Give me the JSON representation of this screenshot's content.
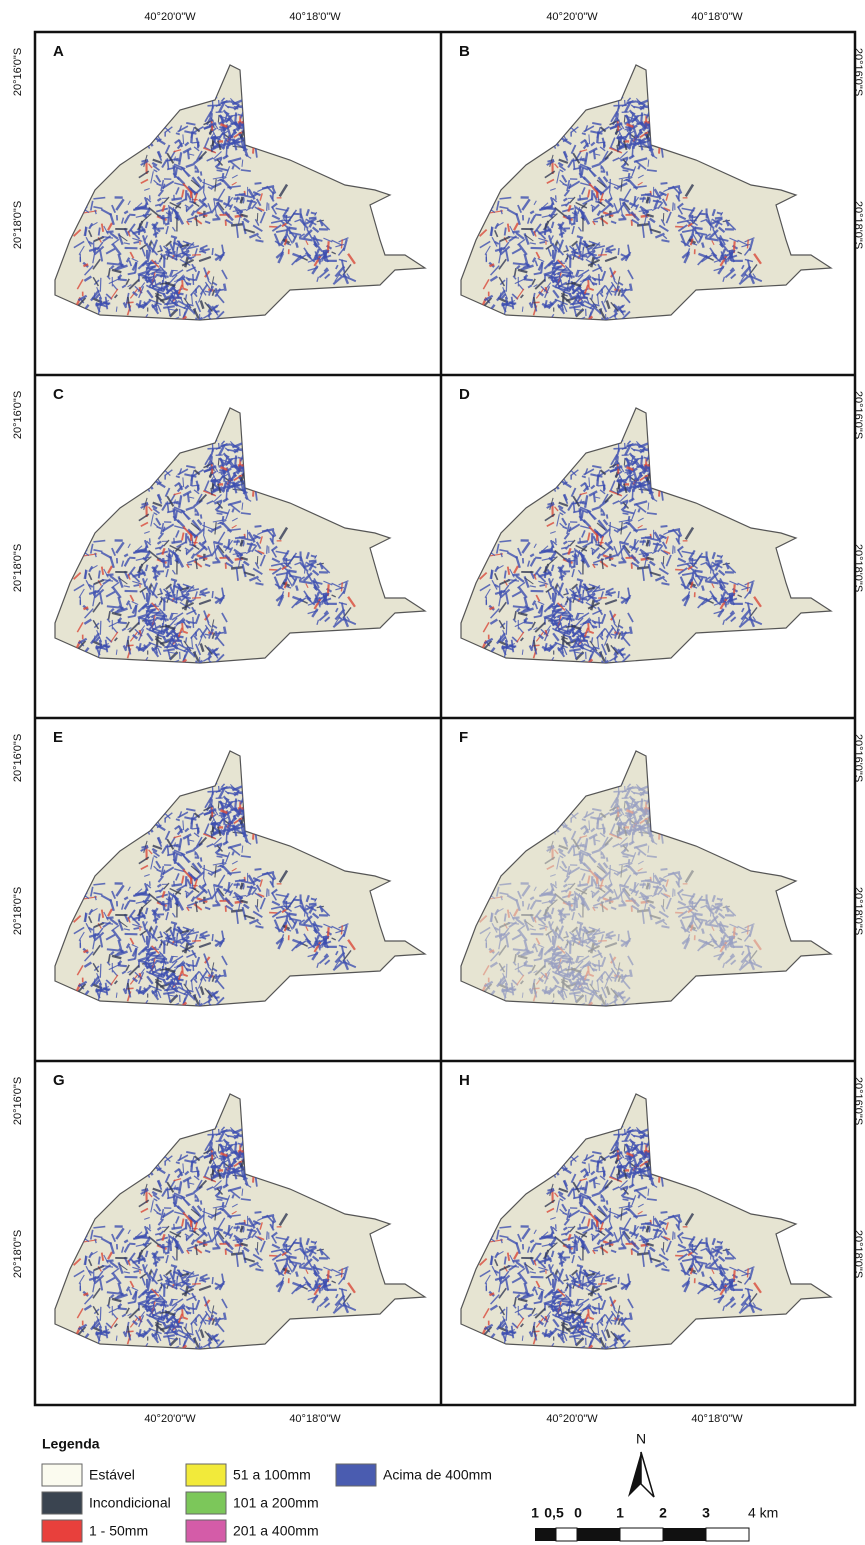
{
  "panels": [
    {
      "label": "A"
    },
    {
      "label": "B"
    },
    {
      "label": "C"
    },
    {
      "label": "D"
    },
    {
      "label": "E"
    },
    {
      "label": "F"
    },
    {
      "label": "G"
    },
    {
      "label": "H"
    }
  ],
  "coordinates": {
    "longitude": [
      "40°20'0\"W",
      "40°18'0\"W"
    ],
    "latitude": [
      "20°16'0\"S",
      "20°18'0\"S"
    ]
  },
  "legend": {
    "title": "Legenda",
    "items": [
      {
        "label": "Estável",
        "color": "#fbfbef"
      },
      {
        "label": "Incondicional",
        "color": "#3a4450"
      },
      {
        "label": "1 - 50mm",
        "color": "#e8403c"
      },
      {
        "label": "51 a 100mm",
        "color": "#f2ea3a"
      },
      {
        "label": "101 a 200mm",
        "color": "#7cc75a"
      },
      {
        "label": "201 a 400mm",
        "color": "#d45ca8"
      },
      {
        "label": "Acima de 400mm",
        "color": "#4a5cb0"
      }
    ]
  },
  "north": "N",
  "scale": [
    "1",
    "0,5",
    "0",
    "1",
    "2",
    "3",
    "4 km"
  ]
}
